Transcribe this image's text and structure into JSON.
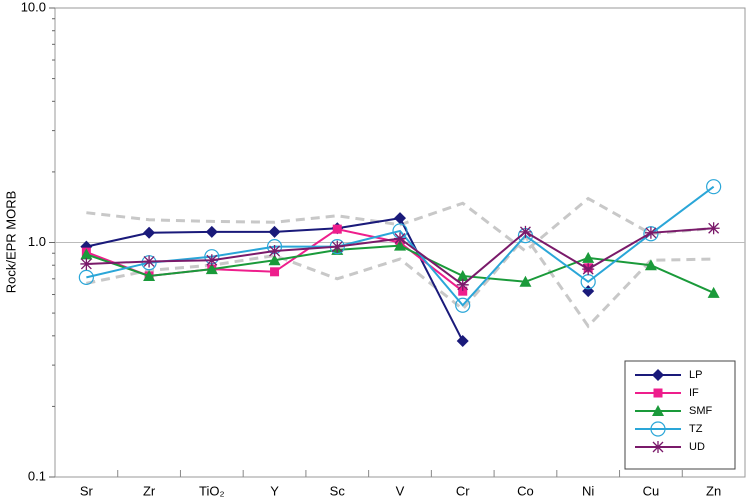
{
  "chart_data": {
    "type": "line",
    "ylabel": "Rock/EPR MORB",
    "categories": [
      "Sr",
      "Zr",
      "TiO₂",
      "Y",
      "Sc",
      "V",
      "Cr",
      "Co",
      "Ni",
      "Cu",
      "Zn"
    ],
    "ylim": [
      0.1,
      10
    ],
    "log_y": true,
    "yticks": [
      {
        "value": 0.1,
        "label": "0.1"
      },
      {
        "value": 1,
        "label": "1.0"
      },
      {
        "value": 10,
        "label": "10.0"
      }
    ],
    "yminorticks": [
      0.2,
      0.3,
      0.4,
      0.5,
      0.6,
      0.7,
      0.8,
      0.9,
      2,
      3,
      4,
      5,
      6,
      7,
      8,
      9
    ],
    "hline": 1,
    "legend": "lower right",
    "series": [
      {
        "color": "#c8c8c8",
        "dashed": true,
        "values": [
          1.34,
          1.25,
          1.23,
          1.22,
          1.3,
          1.19,
          1.47,
          0.92,
          1.54,
          1.09,
          1.15
        ]
      },
      {
        "color": "#c8c8c8",
        "dashed": true,
        "values": [
          0.67,
          0.76,
          0.8,
          0.88,
          0.7,
          0.85,
          0.52,
          1.06,
          0.44,
          0.84,
          0.85
        ]
      },
      {
        "name": "LP",
        "color": "#1a1a7a",
        "marker": "diamond",
        "values": [
          0.96,
          1.1,
          1.11,
          1.11,
          1.15,
          1.27,
          0.38,
          null,
          0.62,
          null,
          null
        ]
      },
      {
        "name": "IF",
        "color": "#ee1e8c",
        "marker": "square",
        "values": [
          0.91,
          0.72,
          0.77,
          0.75,
          1.14,
          1.0,
          0.62,
          null,
          0.78,
          null,
          null
        ]
      },
      {
        "name": "SMF",
        "color": "#1a9a3a",
        "marker": "triangle",
        "values": [
          0.89,
          0.72,
          0.77,
          0.84,
          0.93,
          0.97,
          0.72,
          0.68,
          0.86,
          0.8,
          0.61
        ]
      },
      {
        "name": "TZ",
        "color": "#2aa6d8",
        "marker": "circle",
        "values": [
          0.71,
          0.82,
          0.87,
          0.96,
          0.96,
          1.12,
          0.54,
          1.07,
          0.68,
          1.09,
          1.73
        ]
      },
      {
        "name": "UD",
        "color": "#7a1a6a",
        "marker": "star",
        "values": [
          0.81,
          0.83,
          0.84,
          0.92,
          0.96,
          1.04,
          0.66,
          1.11,
          0.77,
          1.1,
          1.15
        ]
      }
    ]
  }
}
